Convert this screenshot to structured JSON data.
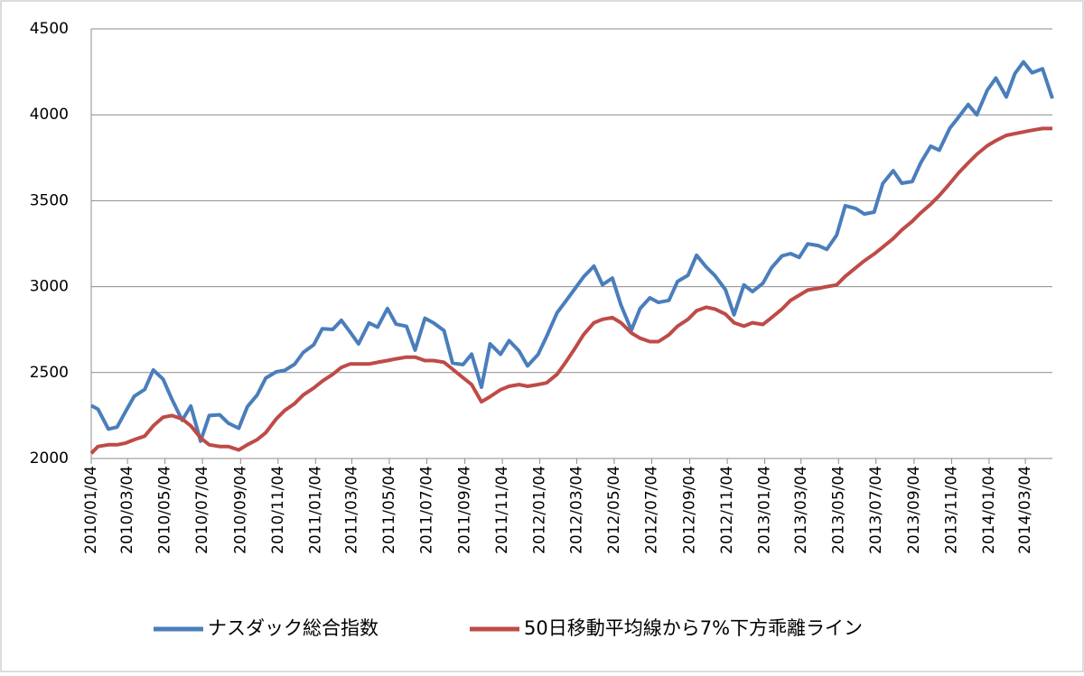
{
  "chart_data": {
    "type": "line",
    "x": [
      "2010/01/04",
      "2010/01/15",
      "2010/02/01",
      "2010/02/15",
      "2010/03/01",
      "2010/03/15",
      "2010/04/01",
      "2010/04/15",
      "2010/05/01",
      "2010/05/15",
      "2010/06/01",
      "2010/06/15",
      "2010/07/01",
      "2010/07/15",
      "2010/08/01",
      "2010/08/15",
      "2010/09/01",
      "2010/09/15",
      "2010/10/01",
      "2010/10/15",
      "2010/11/01",
      "2010/11/15",
      "2010/12/01",
      "2010/12/15",
      "2011/01/01",
      "2011/01/15",
      "2011/02/01",
      "2011/02/15",
      "2011/03/01",
      "2011/03/15",
      "2011/04/01",
      "2011/04/15",
      "2011/05/01",
      "2011/05/15",
      "2011/06/01",
      "2011/06/15",
      "2011/07/01",
      "2011/07/15",
      "2011/08/01",
      "2011/08/15",
      "2011/09/01",
      "2011/09/15",
      "2011/10/01",
      "2011/10/15",
      "2011/11/01",
      "2011/11/15",
      "2011/12/01",
      "2011/12/15",
      "2012/01/01",
      "2012/01/15",
      "2012/02/01",
      "2012/02/15",
      "2012/03/01",
      "2012/03/15",
      "2012/04/01",
      "2012/04/15",
      "2012/05/01",
      "2012/05/15",
      "2012/06/01",
      "2012/06/15",
      "2012/07/01",
      "2012/07/15",
      "2012/08/01",
      "2012/08/15",
      "2012/09/01",
      "2012/09/15",
      "2012/10/01",
      "2012/10/15",
      "2012/11/01",
      "2012/11/15",
      "2012/12/01",
      "2012/12/15",
      "2013/01/01",
      "2013/01/15",
      "2013/02/01",
      "2013/02/15",
      "2013/03/01",
      "2013/03/15",
      "2013/04/01",
      "2013/04/15",
      "2013/05/01",
      "2013/05/15",
      "2013/06/01",
      "2013/06/15",
      "2013/07/01",
      "2013/07/15",
      "2013/08/01",
      "2013/08/15",
      "2013/09/01",
      "2013/09/15",
      "2013/10/01",
      "2013/10/15",
      "2013/11/01",
      "2013/11/15",
      "2013/12/01",
      "2013/12/15",
      "2014/01/01",
      "2014/01/15",
      "2014/02/01",
      "2014/02/15",
      "2014/03/01",
      "2014/03/15",
      "2014/04/01",
      "2014/04/17"
    ],
    "xlim": [
      "2010/01/04",
      "2014/04/17"
    ],
    "xticks": [
      "2010/01/04",
      "2010/03/04",
      "2010/05/04",
      "2010/07/04",
      "2010/09/04",
      "2010/11/04",
      "2011/01/04",
      "2011/03/04",
      "2011/05/04",
      "2011/07/04",
      "2011/09/04",
      "2011/11/04",
      "2012/01/04",
      "2012/03/04",
      "2012/05/04",
      "2012/07/04",
      "2012/09/04",
      "2012/11/04",
      "2013/01/04",
      "2013/03/04",
      "2013/05/04",
      "2013/07/04",
      "2013/09/04",
      "2013/11/04",
      "2014/01/04",
      "2014/03/04"
    ],
    "ylim": [
      2000,
      4500
    ],
    "yticks": [
      2000,
      2500,
      3000,
      3500,
      4000,
      4500
    ],
    "grid": true,
    "series": [
      {
        "name": "ナスダック総合指数",
        "color": "#4a7ebb",
        "values": [
          2308,
          2287,
          2171,
          2183,
          2274,
          2362,
          2402,
          2515,
          2461,
          2347,
          2222,
          2305,
          2101,
          2250,
          2254,
          2206,
          2176,
          2301,
          2370,
          2468,
          2504,
          2513,
          2549,
          2617,
          2662,
          2755,
          2751,
          2804,
          2737,
          2667,
          2789,
          2764,
          2873,
          2782,
          2769,
          2631,
          2816,
          2789,
          2744,
          2555,
          2546,
          2607,
          2415,
          2667,
          2606,
          2686,
          2626,
          2539,
          2605,
          2710,
          2848,
          2915,
          2988,
          3056,
          3119,
          3011,
          3050,
          2893,
          2747,
          2872,
          2935,
          2908,
          2920,
          3030,
          3066,
          3183,
          3113,
          3064,
          2982,
          2836,
          3010,
          2971,
          3020,
          3110,
          3179,
          3192,
          3170,
          3249,
          3239,
          3217,
          3300,
          3471,
          3455,
          3423,
          3434,
          3600,
          3675,
          3602,
          3612,
          3722,
          3817,
          3794,
          3922,
          3985,
          4060,
          4000,
          4143,
          4214,
          4104,
          4240,
          4308,
          4245,
          4268,
          4095
        ]
      },
      {
        "name": "50日移動平均線から7%下方乖離ライン",
        "color": "#be4b48",
        "values": [
          2030,
          2070,
          2080,
          2080,
          2090,
          2110,
          2130,
          2190,
          2240,
          2250,
          2230,
          2190,
          2120,
          2080,
          2070,
          2070,
          2050,
          2080,
          2110,
          2150,
          2230,
          2280,
          2320,
          2370,
          2410,
          2450,
          2490,
          2530,
          2550,
          2550,
          2550,
          2560,
          2570,
          2580,
          2590,
          2590,
          2570,
          2570,
          2560,
          2520,
          2470,
          2430,
          2330,
          2360,
          2400,
          2420,
          2430,
          2420,
          2430,
          2440,
          2490,
          2560,
          2640,
          2720,
          2790,
          2810,
          2820,
          2790,
          2730,
          2700,
          2680,
          2680,
          2720,
          2770,
          2810,
          2860,
          2880,
          2870,
          2840,
          2790,
          2770,
          2790,
          2780,
          2820,
          2870,
          2920,
          2950,
          2980,
          2990,
          3000,
          3010,
          3060,
          3110,
          3150,
          3190,
          3230,
          3280,
          3330,
          3380,
          3430,
          3480,
          3530,
          3600,
          3660,
          3720,
          3770,
          3820,
          3850,
          3880,
          3890,
          3900,
          3910,
          3920,
          3920
        ]
      }
    ]
  }
}
